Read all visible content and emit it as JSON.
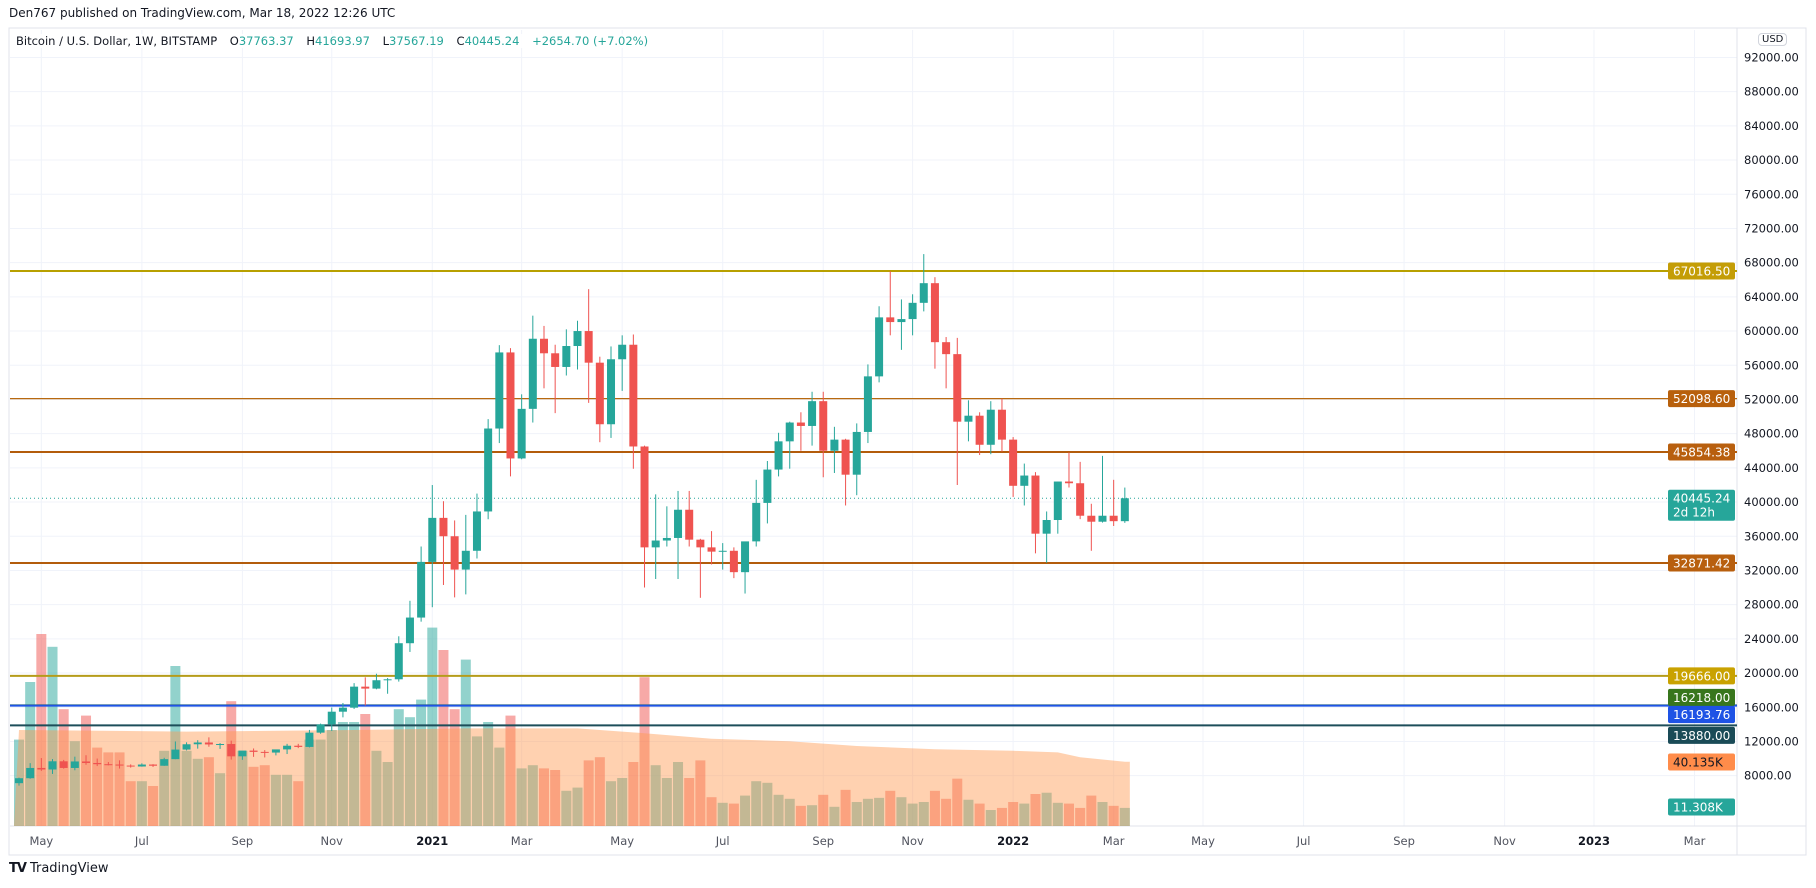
{
  "header": {
    "published": "Den767 published on TradingView.com, Mar 18, 2022 12:26 UTC",
    "symbol": "Bitcoin / U.S. Dollar, 1W, BITSTAMP",
    "o_label": "O",
    "o_value": "37763.37",
    "h_label": "H",
    "h_value": "41693.97",
    "l_label": "L",
    "l_value": "37567.19",
    "c_label": "C",
    "c_value": "40445.24",
    "change": "+2654.70 (+7.02%)"
  },
  "currency_badge": "USD",
  "branding": {
    "logo": "TV",
    "name": "TradingView"
  },
  "colors": {
    "up": "#26a69a",
    "down": "#ef5350",
    "vol_ma": "#ff9850"
  },
  "chart_data": {
    "type": "candlestick",
    "title": "Bitcoin / U.S. Dollar, 1W, BITSTAMP",
    "first_week": "2020-04-20",
    "ylim": [
      8000,
      92000
    ],
    "y_ticks": [
      8000,
      12000,
      16000,
      20000,
      24000,
      28000,
      32000,
      36000,
      40000,
      44000,
      48000,
      52000,
      56000,
      60000,
      64000,
      68000,
      72000,
      76000,
      80000,
      84000,
      88000,
      92000
    ],
    "x_ticks": [
      {
        "label": "May",
        "week": 2,
        "year": false
      },
      {
        "label": "Jul",
        "week": 11,
        "year": false
      },
      {
        "label": "Sep",
        "week": 20,
        "year": false
      },
      {
        "label": "Nov",
        "week": 28,
        "year": false
      },
      {
        "label": "2021",
        "week": 37,
        "year": true
      },
      {
        "label": "Mar",
        "week": 45,
        "year": false
      },
      {
        "label": "May",
        "week": 54,
        "year": false
      },
      {
        "label": "Jul",
        "week": 63,
        "year": false
      },
      {
        "label": "Sep",
        "week": 72,
        "year": false
      },
      {
        "label": "Nov",
        "week": 80,
        "year": false
      },
      {
        "label": "2022",
        "week": 89,
        "year": true
      },
      {
        "label": "Mar",
        "week": 98,
        "year": false
      },
      {
        "label": "May",
        "week": 106,
        "year": false
      },
      {
        "label": "Jul",
        "week": 115,
        "year": false
      },
      {
        "label": "Sep",
        "week": 124,
        "year": false
      },
      {
        "label": "Nov",
        "week": 133,
        "year": false
      },
      {
        "label": "2023",
        "week": 141,
        "year": true
      },
      {
        "label": "Mar",
        "week": 150,
        "year": false
      }
    ],
    "ohlc": [
      [
        7120,
        7770,
        6830,
        7700
      ],
      [
        7700,
        9460,
        7640,
        8900
      ],
      [
        8900,
        10060,
        8560,
        8720
      ],
      [
        8720,
        9940,
        8200,
        9680
      ],
      [
        9680,
        9840,
        8820,
        8900
      ],
      [
        8900,
        10220,
        8630,
        9660
      ],
      [
        9660,
        10390,
        9270,
        9480
      ],
      [
        9480,
        10000,
        9120,
        9340
      ],
      [
        9340,
        9590,
        9210,
        9300
      ],
      [
        9300,
        9790,
        8830,
        9180
      ],
      [
        9180,
        9320,
        8940,
        9070
      ],
      [
        9070,
        9440,
        9050,
        9300
      ],
      [
        9300,
        9340,
        9020,
        9160
      ],
      [
        9160,
        10090,
        9150,
        9930
      ],
      [
        9930,
        12000,
        9930,
        11050
      ],
      [
        11050,
        11900,
        10950,
        11670
      ],
      [
        11670,
        12150,
        11160,
        11880
      ],
      [
        11880,
        12480,
        11380,
        11650
      ],
      [
        11650,
        11810,
        11130,
        11700
      ],
      [
        11700,
        12090,
        9880,
        10260
      ],
      [
        10260,
        10600,
        9850,
        10930
      ],
      [
        10930,
        11180,
        10200,
        10780
      ],
      [
        10780,
        10990,
        10130,
        10700
      ],
      [
        10700,
        10960,
        10370,
        11070
      ],
      [
        11070,
        11720,
        10530,
        11500
      ],
      [
        11500,
        11720,
        11220,
        11360
      ],
      [
        11360,
        13350,
        11300,
        13030
      ],
      [
        13030,
        14090,
        12900,
        14000
      ],
      [
        14000,
        15970,
        13220,
        15480
      ],
      [
        15480,
        16500,
        14820,
        15950
      ],
      [
        15950,
        18820,
        15800,
        18410
      ],
      [
        18410,
        19500,
        16200,
        18180
      ],
      [
        18180,
        19920,
        18100,
        19160
      ],
      [
        19160,
        19420,
        17580,
        19270
      ],
      [
        19270,
        24300,
        19000,
        23490
      ],
      [
        23490,
        28450,
        22470,
        26490
      ],
      [
        26490,
        34800,
        26010,
        33000
      ],
      [
        33000,
        41990,
        27700,
        38150
      ],
      [
        38150,
        40100,
        30300,
        36000
      ],
      [
        36000,
        37850,
        28850,
        32100
      ],
      [
        32100,
        38500,
        29200,
        34300
      ],
      [
        34300,
        40990,
        33400,
        38900
      ],
      [
        38900,
        49700,
        37990,
        48600
      ],
      [
        48600,
        58350,
        46900,
        57500
      ],
      [
        57500,
        58000,
        43000,
        45100
      ],
      [
        45100,
        52600,
        45000,
        50900
      ],
      [
        50900,
        61800,
        49300,
        59100
      ],
      [
        59100,
        60600,
        53300,
        57400
      ],
      [
        57400,
        58400,
        50400,
        55800
      ],
      [
        55800,
        60200,
        54800,
        58250
      ],
      [
        58250,
        61200,
        55500,
        60000
      ],
      [
        60000,
        64900,
        51600,
        56300
      ],
      [
        56300,
        57000,
        47000,
        49100
      ],
      [
        49100,
        58200,
        47500,
        56700
      ],
      [
        56700,
        59500,
        53000,
        58400
      ],
      [
        58400,
        59600,
        43900,
        46500
      ],
      [
        46500,
        46600,
        30000,
        34700
      ],
      [
        34700,
        40900,
        31000,
        35500
      ],
      [
        35500,
        39500,
        34800,
        35800
      ],
      [
        35800,
        41300,
        31000,
        39100
      ],
      [
        39100,
        41300,
        34800,
        35600
      ],
      [
        35600,
        35700,
        28800,
        34700
      ],
      [
        34700,
        36600,
        32700,
        34200
      ],
      [
        34200,
        35200,
        32100,
        34300
      ],
      [
        34300,
        34700,
        31100,
        31800
      ],
      [
        31800,
        35200,
        29300,
        35400
      ],
      [
        35400,
        42600,
        34800,
        39900
      ],
      [
        39900,
        44800,
        37500,
        43800
      ],
      [
        43800,
        48100,
        43000,
        47100
      ],
      [
        47100,
        49400,
        43900,
        49300
      ],
      [
        49300,
        50500,
        46000,
        48900
      ],
      [
        48900,
        52900,
        46600,
        51800
      ],
      [
        51800,
        52900,
        42900,
        46000
      ],
      [
        46000,
        48800,
        43400,
        47300
      ],
      [
        47300,
        47400,
        39600,
        43200
      ],
      [
        43200,
        49200,
        40800,
        48200
      ],
      [
        48200,
        56100,
        46900,
        54700
      ],
      [
        54700,
        62900,
        54000,
        61600
      ],
      [
        61600,
        67000,
        59500,
        61050
      ],
      [
        61050,
        63700,
        57800,
        61400
      ],
      [
        61400,
        64300,
        59500,
        63300
      ],
      [
        63300,
        69000,
        62300,
        65600
      ],
      [
        65600,
        66300,
        55600,
        58700
      ],
      [
        58700,
        59300,
        53300,
        57300
      ],
      [
        57300,
        59200,
        42000,
        49400
      ],
      [
        49400,
        51900,
        47100,
        50100
      ],
      [
        50100,
        50500,
        45500,
        46700
      ],
      [
        46700,
        51800,
        45600,
        50800
      ],
      [
        50800,
        52100,
        45900,
        47300
      ],
      [
        47300,
        47600,
        40600,
        41900
      ],
      [
        41900,
        44500,
        39600,
        43100
      ],
      [
        43100,
        43500,
        34000,
        36300
      ],
      [
        36300,
        38900,
        32900,
        37900
      ],
      [
        37900,
        42400,
        36300,
        42400
      ],
      [
        42400,
        45800,
        41700,
        42200
      ],
      [
        42200,
        44700,
        38000,
        38400
      ],
      [
        38400,
        39800,
        34300,
        37700
      ],
      [
        37700,
        45400,
        37600,
        38400
      ],
      [
        38400,
        42600,
        37200,
        37763.37
      ],
      [
        37763.37,
        41693.97,
        37567.19,
        40445.24
      ]
    ],
    "volume_k": [
      54,
      90,
      120,
      112,
      73,
      53,
      69,
      49,
      46,
      46,
      28,
      28,
      25,
      47,
      100,
      47,
      42,
      43,
      33,
      78,
      47,
      37,
      38,
      32,
      32,
      28,
      54,
      54,
      60,
      65,
      65,
      70,
      47,
      40,
      73,
      68,
      79,
      124,
      110,
      73,
      104,
      56,
      65,
      49,
      69,
      36,
      38,
      36,
      35,
      22,
      24,
      41,
      43,
      28,
      30,
      40,
      93,
      38,
      30,
      40,
      30,
      41,
      18,
      14.5,
      14,
      19,
      28,
      27,
      19.5,
      17,
      12.6,
      13,
      19.5,
      12,
      22.6,
      15,
      17,
      17.6,
      22,
      18,
      14,
      15,
      22,
      17,
      29.6,
      16.4,
      14,
      10,
      11.3,
      15,
      14,
      20,
      20.8,
      14.5,
      14,
      11.3,
      19,
      15,
      12.6,
      11.308
    ],
    "volume_ma_k": [
      [
        0,
        60
      ],
      [
        15,
        59
      ],
      [
        30,
        60
      ],
      [
        40,
        61
      ],
      [
        50,
        61
      ],
      [
        56,
        58
      ],
      [
        62,
        54.5
      ],
      [
        69,
        53
      ],
      [
        75,
        50
      ],
      [
        82,
        48
      ],
      [
        89,
        47
      ],
      [
        93,
        46
      ],
      [
        95,
        43
      ],
      [
        99,
        40.135
      ]
    ],
    "levels": [
      {
        "price": 67016.5,
        "label": "67016.50",
        "line": "#b8a000",
        "bg": "#c49d06",
        "thick": true
      },
      {
        "price": 52098.6,
        "label": "52098.60",
        "line": "#b8690f",
        "bg": "#b8600c",
        "thick": false
      },
      {
        "price": 45854.38,
        "label": "45854.38",
        "line": "#b35c0b",
        "bg": "#b85f0e",
        "thick": true
      },
      {
        "price": 32871.42,
        "label": "32871.42",
        "line": "#b35c0b",
        "bg": "#b85f0e",
        "thick": true
      },
      {
        "price": 19666.0,
        "label": "19666.00",
        "line": "#b59c1a",
        "bg": "#c9a200",
        "thick": true
      },
      {
        "price": 16218.0,
        "label": "16218.00",
        "line": "#38761d",
        "bg": "#38761d",
        "thick": true
      },
      {
        "price": 16193.76,
        "label": "16193.76",
        "line": "#1e53e5",
        "bg": "#1e53e5",
        "thick": true
      },
      {
        "price": 13880.0,
        "label": "13880.00",
        "line": "#1d4e5a",
        "bg": "#1a4b57",
        "thick": true
      }
    ],
    "last_price": {
      "price": 40445.24,
      "label": "40445.24",
      "countdown": "2d 12h"
    },
    "volume_labels": {
      "ma": "40.135K",
      "last": "11.308K"
    }
  }
}
